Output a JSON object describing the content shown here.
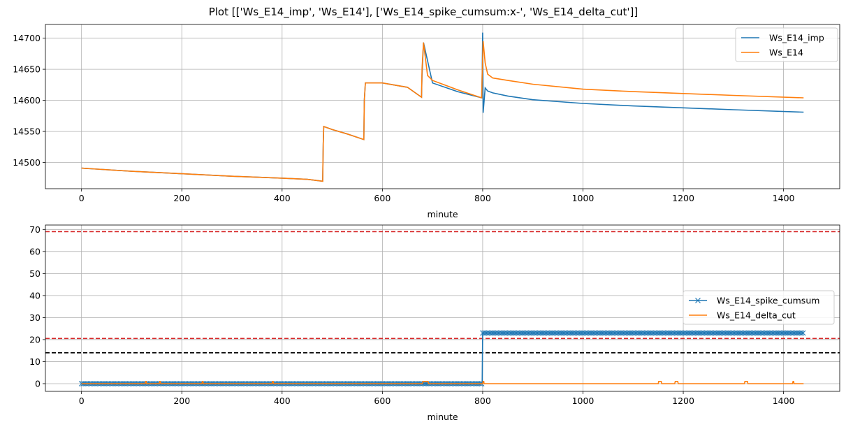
{
  "figure": {
    "title": "Plot [['Ws_E14_imp', 'Ws_E14'], ['Ws_E14_spike_cumsum:x-', 'Ws_E14_delta_cut']]"
  },
  "chart_data": [
    {
      "type": "line",
      "xlabel": "minute",
      "ylabel": "",
      "xlim": [
        -72,
        1512
      ],
      "ylim": [
        14458,
        14722
      ],
      "xticks": [
        0,
        200,
        400,
        600,
        800,
        1000,
        1200,
        1400
      ],
      "xtick_labels": [
        "0",
        "200",
        "400",
        "600",
        "800",
        "1000",
        "1200",
        "1400"
      ],
      "yticks": [
        14500,
        14550,
        14600,
        14650,
        14700
      ],
      "ytick_labels": [
        "14500",
        "14550",
        "14600",
        "14650",
        "14700"
      ],
      "grid": true,
      "legend_position": "top-right",
      "series": [
        {
          "name": "Ws_E14_imp",
          "color": "#1f77b4",
          "x": [
            0,
            100,
            200,
            300,
            400,
            450,
            481,
            482,
            483,
            500,
            530,
            563,
            564,
            566,
            600,
            650,
            678,
            679,
            682,
            700,
            750,
            798,
            799,
            800,
            801,
            805,
            810,
            820,
            850,
            900,
            1000,
            1100,
            1200,
            1300,
            1440
          ],
          "y": [
            14491,
            14486,
            14482,
            14478,
            14475,
            14473,
            14470,
            14530,
            14558,
            14553,
            14546,
            14537,
            14600,
            14628,
            14628,
            14621,
            14605,
            14640,
            14693,
            14628,
            14614,
            14604,
            14640,
            14709,
            14580,
            14620,
            14615,
            14612,
            14607,
            14601,
            14595,
            14591,
            14588,
            14585,
            14581
          ]
        },
        {
          "name": "Ws_E14",
          "color": "#ff7f0e",
          "x": [
            0,
            100,
            200,
            300,
            400,
            450,
            481,
            482,
            483,
            500,
            530,
            563,
            564,
            566,
            600,
            650,
            678,
            679,
            682,
            690,
            700,
            750,
            798,
            799,
            801,
            805,
            810,
            820,
            850,
            900,
            1000,
            1100,
            1200,
            1300,
            1440
          ],
          "y": [
            14491,
            14486,
            14482,
            14478,
            14475,
            14473,
            14470,
            14530,
            14558,
            14553,
            14546,
            14537,
            14600,
            14628,
            14628,
            14621,
            14605,
            14650,
            14693,
            14640,
            14632,
            14617,
            14604,
            14640,
            14695,
            14660,
            14642,
            14636,
            14632,
            14626,
            14618,
            14614,
            14611,
            14608,
            14604
          ]
        }
      ],
      "hlines": []
    },
    {
      "type": "line",
      "xlabel": "minute",
      "ylabel": "",
      "xlim": [
        -72,
        1512
      ],
      "ylim": [
        -3.5,
        72.0
      ],
      "xticks": [
        0,
        200,
        400,
        600,
        800,
        1000,
        1200,
        1400
      ],
      "xtick_labels": [
        "0",
        "200",
        "400",
        "600",
        "800",
        "1000",
        "1200",
        "1400"
      ],
      "yticks": [
        0,
        10,
        20,
        30,
        40,
        50,
        60,
        70
      ],
      "ytick_labels": [
        "0",
        "10",
        "20",
        "30",
        "40",
        "50",
        "60",
        "70"
      ],
      "grid": true,
      "legend_position": "center-right",
      "series": [
        {
          "name": "Ws_E14_spike_cumsum",
          "color": "#1f77b4",
          "marker": "x",
          "x": [
            0,
            798,
            799,
            800,
            1440
          ],
          "y": [
            0,
            0,
            0,
            23,
            23
          ]
        },
        {
          "name": "Ws_E14_delta_cut",
          "color": "#ff7f0e",
          "x": [
            0,
            127,
            128,
            129,
            130,
            155,
            156,
            157,
            158,
            240,
            241,
            242,
            243,
            380,
            381,
            382,
            383,
            680,
            681,
            682,
            690,
            691,
            692,
            800,
            801,
            802,
            803,
            1150,
            1151,
            1152,
            1155,
            1156,
            1157,
            1183,
            1184,
            1185,
            1188,
            1189,
            1190,
            1322,
            1323,
            1324,
            1327,
            1328,
            1329,
            1418,
            1419,
            1420,
            1421,
            1440
          ],
          "y": [
            0,
            0,
            1,
            1,
            0,
            0,
            1,
            1,
            0,
            0,
            1,
            1,
            0,
            0,
            1,
            1,
            0,
            0,
            1,
            1,
            1,
            1,
            0,
            0,
            1,
            1,
            0,
            0,
            1,
            1,
            1,
            1,
            0,
            0,
            1,
            1,
            1,
            1,
            0,
            0,
            1,
            1,
            1,
            1,
            0,
            0,
            1,
            1,
            0,
            0
          ]
        }
      ],
      "hlines": [
        {
          "y": 69,
          "color": "#d62728"
        },
        {
          "y": 20.5,
          "color": "#d62728"
        },
        {
          "y": 14,
          "color": "#000000"
        }
      ]
    }
  ]
}
